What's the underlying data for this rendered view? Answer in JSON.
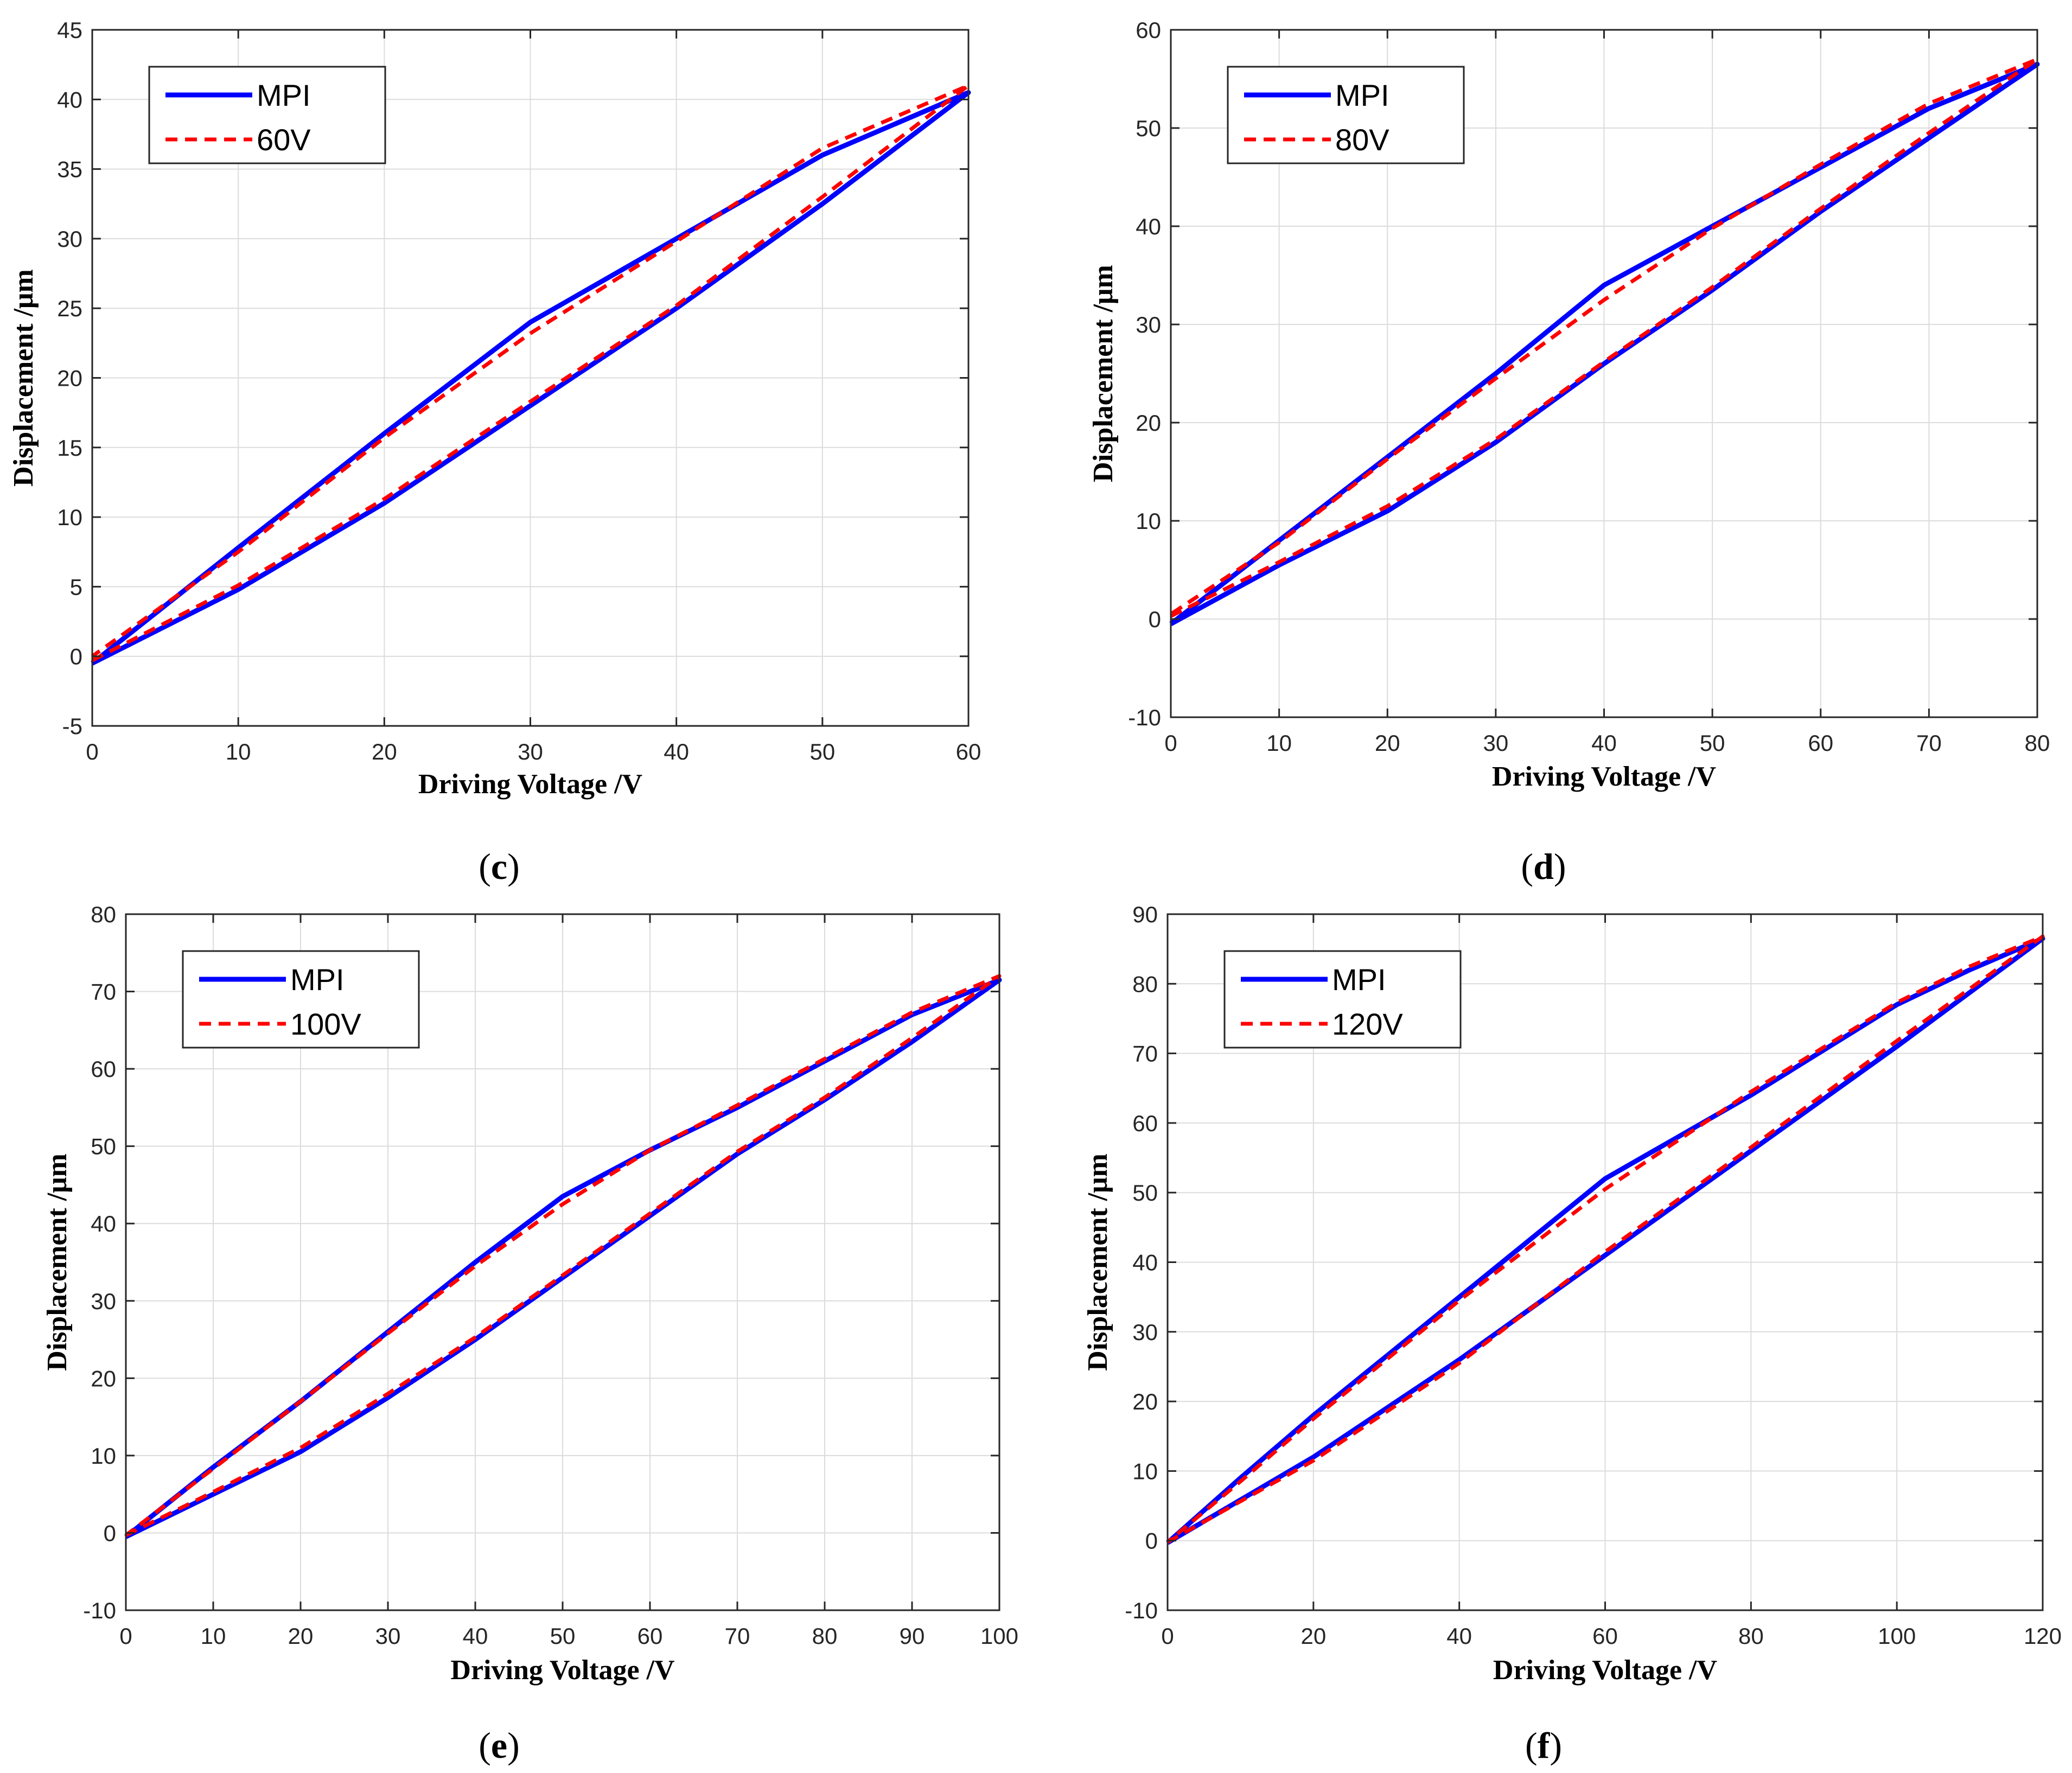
{
  "chart_data": [
    {
      "type": "line",
      "caption": "(c)",
      "caption_letter": "c",
      "xlabel": "Driving Voltage  /V",
      "ylabel": "Displacement  /μm",
      "xlim": [
        0,
        60
      ],
      "ylim": [
        -5,
        45
      ],
      "xticks": [
        0,
        10,
        20,
        30,
        40,
        50,
        60
      ],
      "yticks": [
        -5,
        0,
        5,
        10,
        15,
        20,
        25,
        30,
        35,
        40,
        45
      ],
      "grid": true,
      "legend": "top-left",
      "series": [
        {
          "name": "MPI",
          "color": "#0000ff",
          "style": "solid",
          "x": [
            0,
            10,
            20,
            30,
            40,
            50,
            60,
            50,
            40,
            30,
            20,
            10,
            0
          ],
          "y": [
            -0.5,
            4.8,
            11,
            18,
            25,
            32.5,
            40.5,
            36,
            30,
            24,
            16,
            7.8,
            -0.5
          ]
        },
        {
          "name": "60V",
          "color": "#ff0000",
          "style": "dashed",
          "x": [
            0,
            10,
            20,
            30,
            40,
            50,
            60,
            50,
            40,
            30,
            20,
            10,
            0
          ],
          "y": [
            -0.3,
            5.1,
            11.3,
            18.3,
            25.2,
            33,
            41,
            36.5,
            29.8,
            23.2,
            15.7,
            7.5,
            0
          ]
        }
      ]
    },
    {
      "type": "line",
      "caption": "(d)",
      "caption_letter": "d",
      "xlabel": "Driving Voltage  /V",
      "ylabel": "Displacement  /μm",
      "xlim": [
        0,
        80
      ],
      "ylim": [
        -10,
        60
      ],
      "xticks": [
        0,
        10,
        20,
        30,
        40,
        50,
        60,
        70,
        80
      ],
      "yticks": [
        -10,
        0,
        10,
        20,
        30,
        40,
        50,
        60
      ],
      "grid": true,
      "legend": "top-left",
      "series": [
        {
          "name": "MPI",
          "color": "#0000ff",
          "style": "solid",
          "x": [
            0,
            10,
            20,
            30,
            40,
            50,
            60,
            70,
            80,
            70,
            60,
            50,
            40,
            30,
            20,
            10,
            0
          ],
          "y": [
            -0.5,
            5.5,
            11,
            18,
            26,
            33.5,
            41.5,
            49,
            56.5,
            52,
            46,
            40,
            34,
            25,
            16.5,
            8,
            -0.5
          ]
        },
        {
          "name": "80V",
          "color": "#ff0000",
          "style": "dashed",
          "x": [
            0,
            10,
            20,
            30,
            40,
            50,
            60,
            70,
            80,
            70,
            60,
            50,
            40,
            30,
            20,
            10,
            0
          ],
          "y": [
            0.3,
            5.8,
            11.5,
            18.3,
            26.2,
            33.8,
            41.8,
            49.5,
            57,
            52.5,
            46.3,
            39.8,
            32.5,
            24.5,
            16.3,
            7.8,
            0.5
          ]
        }
      ]
    },
    {
      "type": "line",
      "caption": "(e)",
      "caption_letter": "e",
      "xlabel": "Driving Voltage  /V",
      "ylabel": "Displacement  /μm",
      "xlim": [
        0,
        100
      ],
      "ylim": [
        -10,
        80
      ],
      "xticks": [
        0,
        10,
        20,
        30,
        40,
        50,
        60,
        70,
        80,
        90,
        100
      ],
      "yticks": [
        -10,
        0,
        10,
        20,
        30,
        40,
        50,
        60,
        70,
        80
      ],
      "grid": true,
      "legend": "top-left",
      "series": [
        {
          "name": "MPI",
          "color": "#0000ff",
          "style": "solid",
          "x": [
            0,
            10,
            20,
            30,
            40,
            50,
            60,
            70,
            80,
            90,
            100,
            90,
            80,
            70,
            60,
            50,
            40,
            30,
            20,
            10,
            0
          ],
          "y": [
            -0.5,
            5,
            10.5,
            17.5,
            25,
            33,
            41,
            49,
            56,
            63.5,
            71.5,
            67,
            61,
            55,
            49.5,
            43.5,
            35,
            26,
            17,
            8.5,
            -0.5
          ]
        },
        {
          "name": "100V",
          "color": "#ff0000",
          "style": "dashed",
          "x": [
            0,
            10,
            20,
            30,
            40,
            50,
            60,
            70,
            80,
            90,
            100,
            90,
            80,
            70,
            60,
            50,
            40,
            30,
            20,
            10,
            0
          ],
          "y": [
            -0.3,
            5.3,
            11,
            18,
            25.3,
            33.3,
            41.3,
            49.3,
            56.3,
            64,
            72,
            67.3,
            61.3,
            55.3,
            49.5,
            42.5,
            34.5,
            25.8,
            17,
            8.3,
            -0.3
          ]
        }
      ]
    },
    {
      "type": "line",
      "caption": "(f)",
      "caption_letter": "f",
      "xlabel": "Driving Voltage  /V",
      "ylabel": "Displacement  /μm",
      "xlim": [
        0,
        120
      ],
      "ylim": [
        -10,
        90
      ],
      "xticks": [
        0,
        20,
        40,
        60,
        80,
        100,
        120
      ],
      "yticks": [
        -10,
        0,
        10,
        20,
        30,
        40,
        50,
        60,
        70,
        80,
        90
      ],
      "grid": true,
      "legend": "top-left",
      "series": [
        {
          "name": "MPI",
          "color": "#0000ff",
          "style": "solid",
          "x": [
            0,
            20,
            40,
            60,
            80,
            100,
            120,
            110,
            100,
            80,
            70,
            60,
            40,
            20,
            10,
            0
          ],
          "y": [
            -0.3,
            12,
            26,
            41,
            56,
            71,
            86.5,
            82,
            77,
            64,
            58,
            52,
            35,
            18,
            9,
            -0.3
          ]
        },
        {
          "name": "120V",
          "color": "#ff0000",
          "style": "dashed",
          "x": [
            0,
            20,
            40,
            60,
            80,
            100,
            120,
            110,
            100,
            80,
            70,
            60,
            40,
            20,
            10,
            0
          ],
          "y": [
            -0.2,
            11.5,
            25.5,
            41.5,
            56.5,
            71.8,
            86.8,
            82.5,
            77.3,
            64.5,
            57.5,
            50.5,
            34.5,
            17.5,
            8.5,
            -0.2
          ]
        }
      ]
    }
  ]
}
